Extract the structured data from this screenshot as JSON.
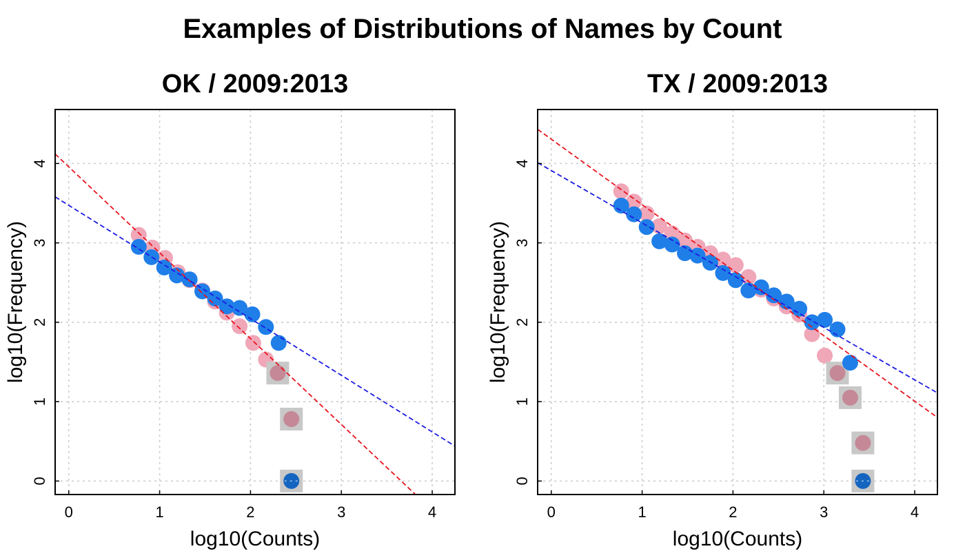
{
  "title": "Examples of Distributions of Names by Count",
  "colors": {
    "blue": "#1f7ee8",
    "pink": "#f0a7b8",
    "highlight": "#c8c8c8",
    "highlight_pink": "#c58896",
    "highlight_blue": "#1565c0",
    "fit_red": "#e8141e",
    "fit_blue": "#1c1ce0",
    "grid": "#cccccc"
  },
  "chart_data": [
    {
      "type": "scatter",
      "title": "OK / 2009:2013",
      "xlabel": "log10(Counts)",
      "ylabel": "log10(Frequency)",
      "xlim": [
        -0.15,
        4.25
      ],
      "ylim": [
        -0.17,
        4.68
      ],
      "xticks": [
        0,
        1,
        2,
        3,
        4
      ],
      "yticks": [
        0,
        1,
        2,
        3,
        4
      ],
      "grid": true,
      "series": [
        {
          "color": "pink",
          "x": [
            0.77,
            0.92,
            1.06,
            1.2,
            1.33,
            1.47,
            1.61,
            1.74,
            1.88,
            2.03,
            2.17,
            2.3,
            2.45
          ],
          "y": [
            3.1,
            2.94,
            2.81,
            2.63,
            2.53,
            2.4,
            2.26,
            2.12,
            1.95,
            1.74,
            1.53,
            1.36,
            0.78
          ],
          "highlighted": [
            false,
            false,
            false,
            false,
            false,
            false,
            false,
            false,
            false,
            false,
            false,
            true,
            true
          ]
        },
        {
          "color": "blue",
          "x": [
            0.77,
            0.91,
            1.05,
            1.19,
            1.33,
            1.47,
            1.61,
            1.74,
            1.88,
            2.02,
            2.17,
            2.31,
            2.45
          ],
          "y": [
            2.95,
            2.82,
            2.69,
            2.59,
            2.54,
            2.39,
            2.3,
            2.2,
            2.18,
            2.1,
            1.94,
            1.74,
            0.0
          ],
          "highlighted": [
            false,
            false,
            false,
            false,
            false,
            false,
            false,
            false,
            false,
            false,
            false,
            false,
            true
          ]
        }
      ],
      "fit_lines": [
        {
          "color": "fit_red",
          "x": [
            -0.15,
            4.25
          ],
          "y": [
            4.12,
            -0.64
          ]
        },
        {
          "color": "fit_blue",
          "x": [
            -0.15,
            4.25
          ],
          "y": [
            3.58,
            0.44
          ]
        }
      ]
    },
    {
      "type": "scatter",
      "title": "TX / 2009:2013",
      "xlabel": "log10(Counts)",
      "ylabel": "log10(Frequency)",
      "xlim": [
        -0.15,
        4.25
      ],
      "ylim": [
        -0.17,
        4.68
      ],
      "xticks": [
        0,
        1,
        2,
        3,
        4
      ],
      "yticks": [
        0,
        1,
        2,
        3,
        4
      ],
      "grid": true,
      "series": [
        {
          "color": "pink",
          "x": [
            0.77,
            0.91,
            1.05,
            1.19,
            1.33,
            1.47,
            1.61,
            1.75,
            1.89,
            2.03,
            2.17,
            2.31,
            2.45,
            2.59,
            2.73,
            2.87,
            3.01,
            3.15,
            3.29,
            3.43
          ],
          "y": [
            3.65,
            3.52,
            3.37,
            3.21,
            3.12,
            3.03,
            2.95,
            2.87,
            2.79,
            2.72,
            2.57,
            2.41,
            2.3,
            2.2,
            2.1,
            1.85,
            1.58,
            1.36,
            1.05,
            0.48
          ],
          "highlighted": [
            false,
            false,
            false,
            false,
            false,
            false,
            false,
            false,
            false,
            false,
            false,
            false,
            false,
            false,
            false,
            false,
            false,
            true,
            true,
            true
          ]
        },
        {
          "color": "blue",
          "x": [
            0.77,
            0.91,
            1.05,
            1.19,
            1.33,
            1.47,
            1.61,
            1.75,
            1.89,
            2.03,
            2.17,
            2.31,
            2.45,
            2.59,
            2.73,
            2.87,
            3.01,
            3.15,
            3.29,
            3.43
          ],
          "y": [
            3.47,
            3.36,
            3.2,
            3.02,
            2.98,
            2.87,
            2.84,
            2.75,
            2.62,
            2.53,
            2.4,
            2.44,
            2.34,
            2.26,
            2.17,
            2.0,
            2.03,
            1.91,
            1.49,
            0.0
          ],
          "highlighted": [
            false,
            false,
            false,
            false,
            false,
            false,
            false,
            false,
            false,
            false,
            false,
            false,
            false,
            false,
            false,
            false,
            false,
            false,
            false,
            true
          ]
        }
      ],
      "fit_lines": [
        {
          "color": "fit_red",
          "x": [
            -0.15,
            4.25
          ],
          "y": [
            4.43,
            0.8
          ]
        },
        {
          "color": "fit_blue",
          "x": [
            -0.15,
            4.25
          ],
          "y": [
            4.01,
            1.11
          ]
        }
      ]
    }
  ]
}
